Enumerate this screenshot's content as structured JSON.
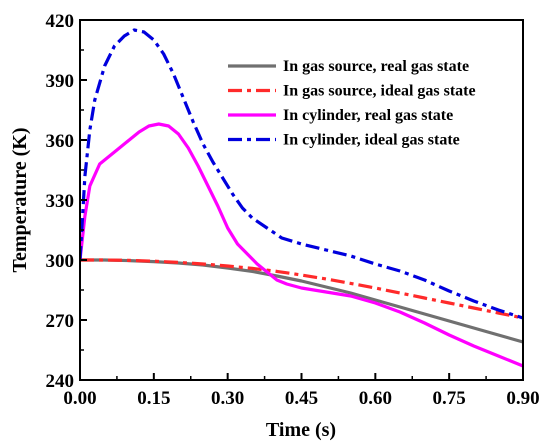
{
  "chart_data": {
    "type": "line",
    "title": "",
    "xlabel": "Time (s)",
    "ylabel": "Temperature  (K)",
    "xlim": [
      0,
      0.9
    ],
    "ylim": [
      240,
      420
    ],
    "xticks": [
      0,
      0.15,
      0.3,
      0.45,
      0.6,
      0.75,
      0.9
    ],
    "xtick_labels": [
      "0.00",
      "0.15",
      "0.30",
      "0.45",
      "0.60",
      "0.75",
      "0.90"
    ],
    "yticks": [
      240,
      270,
      300,
      330,
      360,
      390,
      420
    ],
    "ytick_labels": [
      "240",
      "270",
      "300",
      "330",
      "360",
      "390",
      "420"
    ],
    "grid": false,
    "legend_position": "top-right",
    "series": [
      {
        "name": "In gas source, real gas state",
        "color": "#707070",
        "dash": "solid",
        "x": [
          0,
          0.05,
          0.1,
          0.15,
          0.2,
          0.25,
          0.3,
          0.35,
          0.4,
          0.45,
          0.5,
          0.55,
          0.6,
          0.65,
          0.7,
          0.75,
          0.8,
          0.85,
          0.9
        ],
        "y": [
          300,
          300,
          299.7,
          299.2,
          298.5,
          297.5,
          296,
          294.3,
          292,
          289.5,
          286.5,
          283.5,
          280,
          276.5,
          273,
          269.5,
          266,
          262.5,
          259
        ]
      },
      {
        "name": "In gas source, ideal gas state",
        "color": "#ff2a2a",
        "dash": "dashdot",
        "x": [
          0,
          0.05,
          0.1,
          0.15,
          0.2,
          0.25,
          0.3,
          0.35,
          0.4,
          0.45,
          0.5,
          0.55,
          0.6,
          0.65,
          0.7,
          0.75,
          0.8,
          0.85,
          0.9
        ],
        "y": [
          300,
          300,
          299.8,
          299.4,
          298.8,
          298,
          297,
          295.8,
          294.3,
          292.5,
          290.5,
          288.3,
          286,
          283.5,
          281,
          278.5,
          276,
          273.5,
          271
        ]
      },
      {
        "name": "In cylinder, real gas state",
        "color": "#ff00ff",
        "dash": "solid",
        "x": [
          0,
          0.01,
          0.02,
          0.04,
          0.06,
          0.08,
          0.1,
          0.12,
          0.14,
          0.16,
          0.18,
          0.2,
          0.22,
          0.24,
          0.26,
          0.28,
          0.3,
          0.32,
          0.34,
          0.36,
          0.38,
          0.4,
          0.42,
          0.45,
          0.5,
          0.55,
          0.6,
          0.65,
          0.7,
          0.75,
          0.8,
          0.85,
          0.9
        ],
        "y": [
          300,
          322,
          337,
          348,
          352,
          356,
          360,
          364,
          367,
          368,
          367,
          363,
          356,
          347,
          337,
          327,
          316,
          308,
          303,
          298,
          294,
          290,
          288,
          286,
          284,
          282,
          278.5,
          274,
          268.5,
          262.5,
          257,
          252,
          247
        ]
      },
      {
        "name": "In cylinder, ideal gas state",
        "color": "#0000dd",
        "dash": "dashdot",
        "x": [
          0,
          0.01,
          0.02,
          0.03,
          0.05,
          0.07,
          0.09,
          0.11,
          0.13,
          0.15,
          0.17,
          0.19,
          0.21,
          0.23,
          0.25,
          0.27,
          0.29,
          0.31,
          0.33,
          0.35,
          0.38,
          0.41,
          0.45,
          0.5,
          0.55,
          0.6,
          0.65,
          0.7,
          0.75,
          0.8,
          0.85,
          0.9
        ],
        "y": [
          300,
          342,
          365,
          380,
          397,
          407,
          412,
          415,
          414,
          410,
          403,
          393,
          381,
          369,
          358,
          349,
          341,
          333,
          326,
          321,
          316,
          311,
          308,
          305,
          302,
          298,
          294.5,
          290,
          284.5,
          279.5,
          275,
          271
        ]
      }
    ]
  }
}
